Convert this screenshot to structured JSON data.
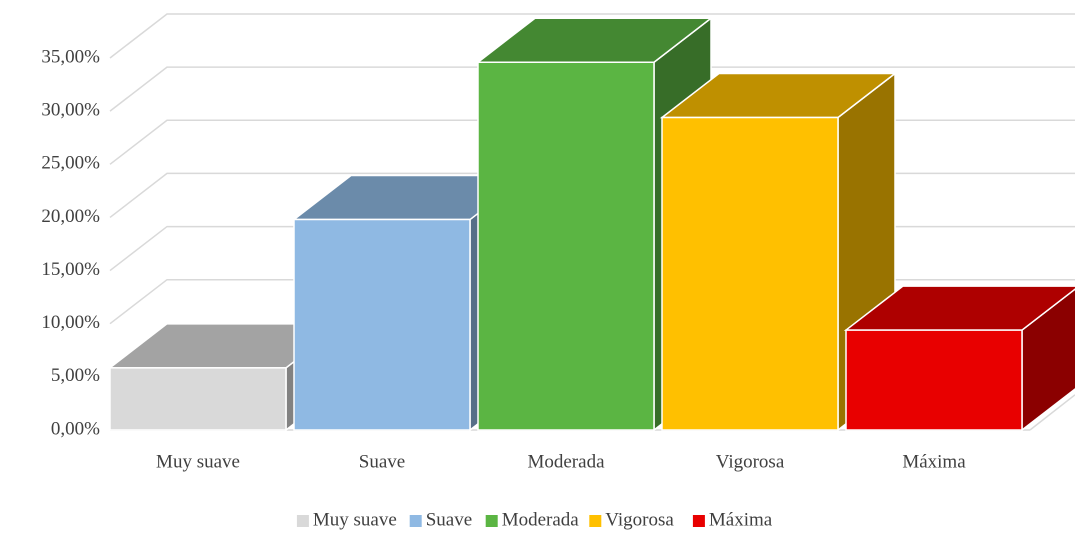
{
  "chart_data": {
    "type": "bar3d",
    "categories": [
      "Muy suave",
      "Suave",
      "Moderada",
      "Vigorosa",
      "Máxima"
    ],
    "values": [
      5.85,
      19.8,
      34.6,
      29.4,
      9.4
    ],
    "colors": [
      "#d9d9d9",
      "#8fb9e3",
      "#5bb543",
      "#ffc000",
      "#e80000"
    ],
    "ylim": [
      0,
      35
    ],
    "yticks": [
      {
        "value": 0,
        "label": "0,00%"
      },
      {
        "value": 5,
        "label": "5,00%"
      },
      {
        "value": 10,
        "label": "10,00%"
      },
      {
        "value": 15,
        "label": "15,00%"
      },
      {
        "value": 20,
        "label": "20,00%"
      },
      {
        "value": 25,
        "label": "25,00%"
      },
      {
        "value": 30,
        "label": "30,00%"
      },
      {
        "value": 35,
        "label": "35,00%"
      }
    ],
    "grid": true,
    "legend": "bottom"
  }
}
